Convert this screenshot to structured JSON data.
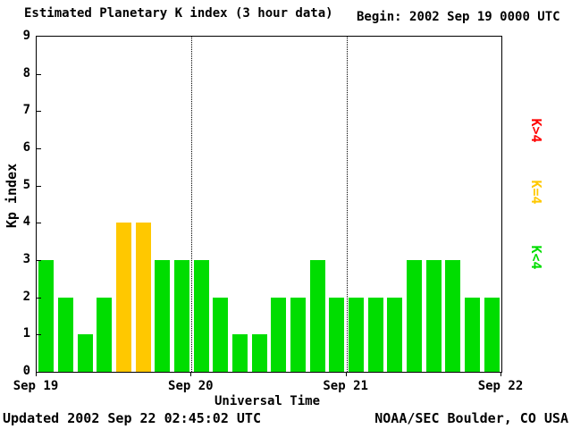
{
  "title": "Estimated Planetary K index (3 hour data)",
  "begin": {
    "label": "Begin:",
    "value": "2002 Sep 19 0000 UTC"
  },
  "axes": {
    "ylabel": "Kp index",
    "xlabel": "Universal Time",
    "yticks": [
      0,
      1,
      2,
      3,
      4,
      5,
      6,
      7,
      8,
      9
    ],
    "xticks": [
      "Sep 19",
      "Sep 20",
      "Sep 21",
      "Sep 22"
    ]
  },
  "legend": [
    {
      "label": "K>4",
      "color": "#ff0000"
    },
    {
      "label": "K=4",
      "color": "#ffc800"
    },
    {
      "label": "K<4",
      "color": "#00dd00"
    }
  ],
  "footer": {
    "updated": "Updated 2002 Sep 22 02:45:02 UTC",
    "credit": "NOAA/SEC Boulder, CO USA"
  },
  "chart_data": {
    "type": "bar",
    "title": "Estimated Planetary K index (3 hour data)",
    "begin_utc": "2002 Sep 19 0000 UTC",
    "interval_hours": 3,
    "total_hours": 72,
    "ylabel": "Kp index",
    "xlabel": "Universal Time",
    "ylim": [
      0,
      9
    ],
    "day_labels": [
      "Sep 19",
      "Sep 20",
      "Sep 21",
      "Sep 22"
    ],
    "day_boundaries_hours": [
      24,
      48
    ],
    "values": [
      3,
      2,
      1,
      2,
      4,
      4,
      3,
      3,
      3,
      2,
      1,
      1,
      2,
      2,
      3,
      2,
      2,
      2,
      2,
      3,
      3,
      3,
      2,
      2
    ],
    "colors": {
      "below4": "#00dd00",
      "equal4": "#ffc800",
      "above4": "#ff0000"
    },
    "grid": "dotted vertical lines at day boundaries only",
    "legend_position": "right, rotated 90deg"
  }
}
